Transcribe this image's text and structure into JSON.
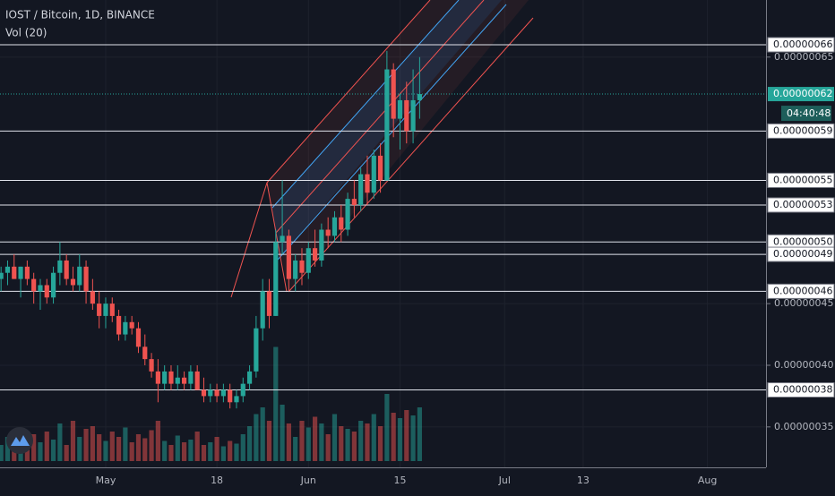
{
  "chart_data": {
    "type": "candlestick",
    "title": "IOST / Bitcoin, 1D, BINANCE",
    "subtitle": "Vol (20)",
    "x": [
      0,
      1,
      2,
      3,
      4,
      5,
      6,
      7,
      8,
      9,
      10,
      11,
      12,
      13,
      14,
      15,
      16,
      17,
      18,
      19,
      20,
      21,
      22,
      23,
      24,
      25,
      26,
      27,
      28,
      29,
      30,
      31,
      32,
      33,
      34,
      35,
      36,
      37,
      38,
      39,
      40,
      41,
      42,
      43,
      44,
      45,
      46,
      47,
      48,
      49,
      50,
      51,
      52,
      53,
      54,
      55,
      56,
      57,
      58,
      59,
      60,
      61,
      62,
      63,
      64
    ],
    "open": [
      4.7e-07,
      4.75e-07,
      4.8e-07,
      4.7e-07,
      4.8e-07,
      4.7e-07,
      4.6e-07,
      4.65e-07,
      4.55e-07,
      4.75e-07,
      4.85e-07,
      4.7e-07,
      4.65e-07,
      4.8e-07,
      4.6e-07,
      4.5e-07,
      4.4e-07,
      4.5e-07,
      4.4e-07,
      4.25e-07,
      4.35e-07,
      4.3e-07,
      4.15e-07,
      4.05e-07,
      3.95e-07,
      3.85e-07,
      3.95e-07,
      3.85e-07,
      3.9e-07,
      3.85e-07,
      3.95e-07,
      3.8e-07,
      3.75e-07,
      3.8e-07,
      3.75e-07,
      3.8e-07,
      3.7e-07,
      3.75e-07,
      3.85e-07,
      3.95e-07,
      4.3e-07,
      4.6e-07,
      4.4e-07,
      5e-07,
      5.05e-07,
      4.7e-07,
      4.85e-07,
      4.75e-07,
      4.95e-07,
      4.85e-07,
      5.1e-07,
      5.05e-07,
      5.2e-07,
      5.1e-07,
      5.35e-07,
      5.3e-07,
      5.55e-07,
      5.4e-07,
      5.7e-07,
      5.5e-07,
      6.4e-07,
      6e-07,
      6.15e-07,
      5.9e-07,
      6.15e-07
    ],
    "high": [
      4.8e-07,
      4.85e-07,
      4.9e-07,
      4.8e-07,
      4.85e-07,
      4.75e-07,
      4.7e-07,
      4.7e-07,
      4.8e-07,
      5e-07,
      4.9e-07,
      4.8e-07,
      4.9e-07,
      4.85e-07,
      4.7e-07,
      4.6e-07,
      4.55e-07,
      4.55e-07,
      4.45e-07,
      4.4e-07,
      4.4e-07,
      4.35e-07,
      4.25e-07,
      4.1e-07,
      4.05e-07,
      4e-07,
      4e-07,
      4e-07,
      3.95e-07,
      4e-07,
      4e-07,
      3.9e-07,
      3.85e-07,
      3.85e-07,
      3.85e-07,
      3.85e-07,
      3.8e-07,
      3.9e-07,
      4e-07,
      4.4e-07,
      4.7e-07,
      4.7e-07,
      5.1e-07,
      5.5e-07,
      5.1e-07,
      4.9e-07,
      4.95e-07,
      5e-07,
      5.1e-07,
      5.15e-07,
      5.2e-07,
      5.25e-07,
      5.3e-07,
      5.4e-07,
      5.5e-07,
      5.6e-07,
      5.7e-07,
      5.75e-07,
      5.8e-07,
      6.55e-07,
      6.45e-07,
      6.2e-07,
      6.3e-07,
      6.4e-07,
      6.5e-07
    ],
    "low": [
      4.6e-07,
      4.65e-07,
      4.7e-07,
      4.55e-07,
      4.65e-07,
      4.5e-07,
      4.45e-07,
      4.5e-07,
      4.5e-07,
      4.65e-07,
      4.65e-07,
      4.6e-07,
      4.6e-07,
      4.5e-07,
      4.45e-07,
      4.3e-07,
      4.3e-07,
      4.35e-07,
      4.2e-07,
      4.2e-07,
      4.25e-07,
      4.1e-07,
      4e-07,
      3.9e-07,
      3.7e-07,
      3.8e-07,
      3.8e-07,
      3.8e-07,
      3.8e-07,
      3.8e-07,
      3.8e-07,
      3.7e-07,
      3.7e-07,
      3.7e-07,
      3.7e-07,
      3.65e-07,
      3.65e-07,
      3.7e-07,
      3.8e-07,
      3.9e-07,
      4.2e-07,
      4.3e-07,
      4.4e-07,
      4.9e-07,
      4.6e-07,
      4.6e-07,
      4.65e-07,
      4.7e-07,
      4.8e-07,
      4.8e-07,
      4.95e-07,
      5e-07,
      5e-07,
      5.05e-07,
      5.2e-07,
      5.25e-07,
      5.3e-07,
      5.35e-07,
      5.4e-07,
      5.5e-07,
      5.85e-07,
      5.75e-07,
      5.8e-07,
      5.8e-07,
      6e-07
    ],
    "close": [
      4.75e-07,
      4.8e-07,
      4.7e-07,
      4.8e-07,
      4.7e-07,
      4.6e-07,
      4.65e-07,
      4.55e-07,
      4.75e-07,
      4.85e-07,
      4.7e-07,
      4.65e-07,
      4.8e-07,
      4.6e-07,
      4.5e-07,
      4.4e-07,
      4.5e-07,
      4.4e-07,
      4.25e-07,
      4.35e-07,
      4.3e-07,
      4.15e-07,
      4.05e-07,
      3.95e-07,
      3.85e-07,
      3.95e-07,
      3.85e-07,
      3.9e-07,
      3.85e-07,
      3.95e-07,
      3.8e-07,
      3.75e-07,
      3.8e-07,
      3.75e-07,
      3.8e-07,
      3.7e-07,
      3.75e-07,
      3.85e-07,
      3.95e-07,
      4.3e-07,
      4.6e-07,
      4.4e-07,
      5e-07,
      5.05e-07,
      4.7e-07,
      4.85e-07,
      4.75e-07,
      4.95e-07,
      4.85e-07,
      5.1e-07,
      5.05e-07,
      5.2e-07,
      5.1e-07,
      5.35e-07,
      5.3e-07,
      5.55e-07,
      5.4e-07,
      5.7e-07,
      5.5e-07,
      6.4e-07,
      6e-07,
      6.15e-07,
      5.9e-07,
      6.15e-07,
      6.2e-07
    ],
    "volume": [
      12,
      18,
      10,
      25,
      15,
      20,
      14,
      22,
      16,
      28,
      12,
      30,
      18,
      24,
      26,
      20,
      15,
      22,
      18,
      25,
      14,
      20,
      17,
      23,
      30,
      15,
      12,
      19,
      14,
      16,
      22,
      12,
      14,
      18,
      11,
      15,
      13,
      20,
      26,
      35,
      40,
      30,
      85,
      42,
      28,
      18,
      30,
      25,
      33,
      28,
      20,
      35,
      26,
      24,
      22,
      30,
      28,
      35,
      26,
      50,
      36,
      32,
      38,
      34,
      40
    ],
    "up_color": "#26a69a",
    "down_color": "#ef5350",
    "xlim": [
      -0.16,
      116.96
    ],
    "ylim": [
      3.172e-07,
      6.963e-07
    ],
    "y2lim": [
      0,
      100
    ],
    "xticks": [
      {
        "value": 16,
        "label": "May"
      },
      {
        "value": 33,
        "label": "18"
      },
      {
        "value": 47,
        "label": "Jun"
      },
      {
        "value": 61,
        "label": "15"
      },
      {
        "value": 77,
        "label": "Jul"
      },
      {
        "value": 89,
        "label": "13"
      },
      {
        "value": 108,
        "label": "Aug"
      }
    ],
    "yticks": [
      {
        "value": 6.5e-07,
        "label": "0.00000065"
      },
      {
        "value": 4.5e-07,
        "label": "0.00000045"
      },
      {
        "value": 4e-07,
        "label": "0.00000040"
      },
      {
        "value": 3.5e-07,
        "label": "0.00000035"
      }
    ],
    "levels": [
      {
        "value": 6.6e-07,
        "label": "0.00000066"
      },
      {
        "value": 5.9e-07,
        "label": "0.00000059"
      },
      {
        "value": 5.5e-07,
        "label": "0.00000055"
      },
      {
        "value": 5.3e-07,
        "label": "0.00000053"
      },
      {
        "value": 5e-07,
        "label": "0.00000050"
      },
      {
        "value": 4.9e-07,
        "label": "0.00000049"
      },
      {
        "value": 4.6e-07,
        "label": "0.00000046"
      },
      {
        "value": 3.8e-07,
        "label": "0.00000038"
      }
    ],
    "last_price": {
      "value": 6.2e-07,
      "label": "0.00000062"
    },
    "countdown": "04:40:48",
    "grid": true
  }
}
